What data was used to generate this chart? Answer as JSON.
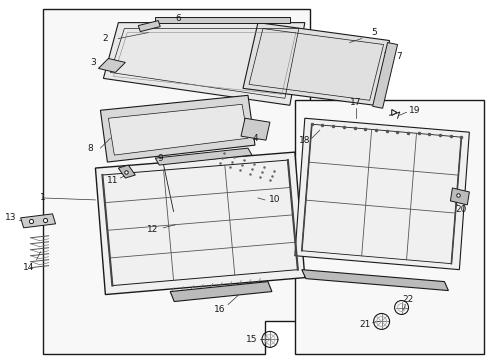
{
  "bg_color": "#ffffff",
  "line_color": "#1a1a1a",
  "fig_width": 4.89,
  "fig_height": 3.6,
  "dpi": 100,
  "font_size": 6.5
}
